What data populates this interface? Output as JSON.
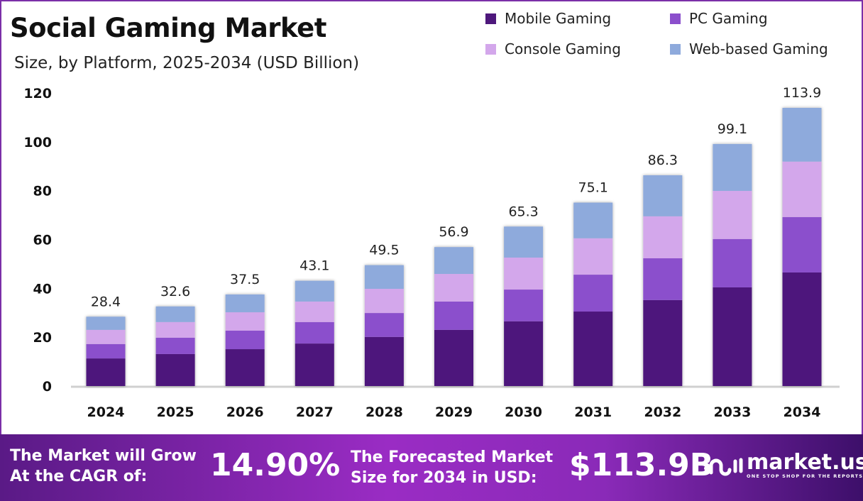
{
  "chart_data": {
    "type": "bar",
    "stacked": true,
    "title": "Social Gaming Market",
    "subtitle": "Size, by Platform, 2025-2034 (USD Billion)",
    "categories": [
      "2024",
      "2025",
      "2026",
      "2027",
      "2028",
      "2029",
      "2030",
      "2031",
      "2032",
      "2033",
      "2034"
    ],
    "series": [
      {
        "name": "Mobile Gaming",
        "color": "#4e187c",
        "values": [
          11.3,
          13.1,
          15.1,
          17.4,
          20.1,
          23.0,
          26.5,
          30.5,
          35.2,
          40.4,
          46.5
        ]
      },
      {
        "name": "PC Gaming",
        "color": "#8b4fcc",
        "values": [
          5.9,
          6.7,
          7.6,
          8.8,
          9.8,
          11.6,
          13.0,
          15.1,
          17.1,
          19.8,
          22.7
        ]
      },
      {
        "name": "Console Gaming",
        "color": "#d3a7eb",
        "values": [
          5.8,
          6.4,
          7.5,
          8.4,
          9.9,
          11.3,
          13.1,
          14.9,
          17.2,
          19.7,
          22.7
        ]
      },
      {
        "name": "Web-based Gaming",
        "color": "#8eaadc",
        "values": [
          5.4,
          6.4,
          7.3,
          8.5,
          9.7,
          11.0,
          12.7,
          14.6,
          16.8,
          19.2,
          22.0
        ]
      }
    ],
    "totals": [
      "28.4",
      "32.6",
      "37.5",
      "43.1",
      "49.5",
      "56.9",
      "65.3",
      "75.1",
      "86.3",
      "99.1",
      "113.9"
    ],
    "yticks": [
      "0",
      "20",
      "40",
      "60",
      "80",
      "100",
      "120"
    ],
    "ylim": [
      0,
      120
    ],
    "grid": false,
    "legend_position": "top-right"
  },
  "banner": {
    "cagr_label": "The Market will Grow At the CAGR of:",
    "cagr_line1": "The Market will Grow",
    "cagr_line2": "At the CAGR of:",
    "cagr_value": "14.90%",
    "forecast_line1": "The Forecasted Market",
    "forecast_line2": "Size for 2034 in USD:",
    "forecast_value": "$113.9B",
    "logo_text": "market.us",
    "logo_tagline": "ONE STOP SHOP FOR THE REPORTS"
  }
}
